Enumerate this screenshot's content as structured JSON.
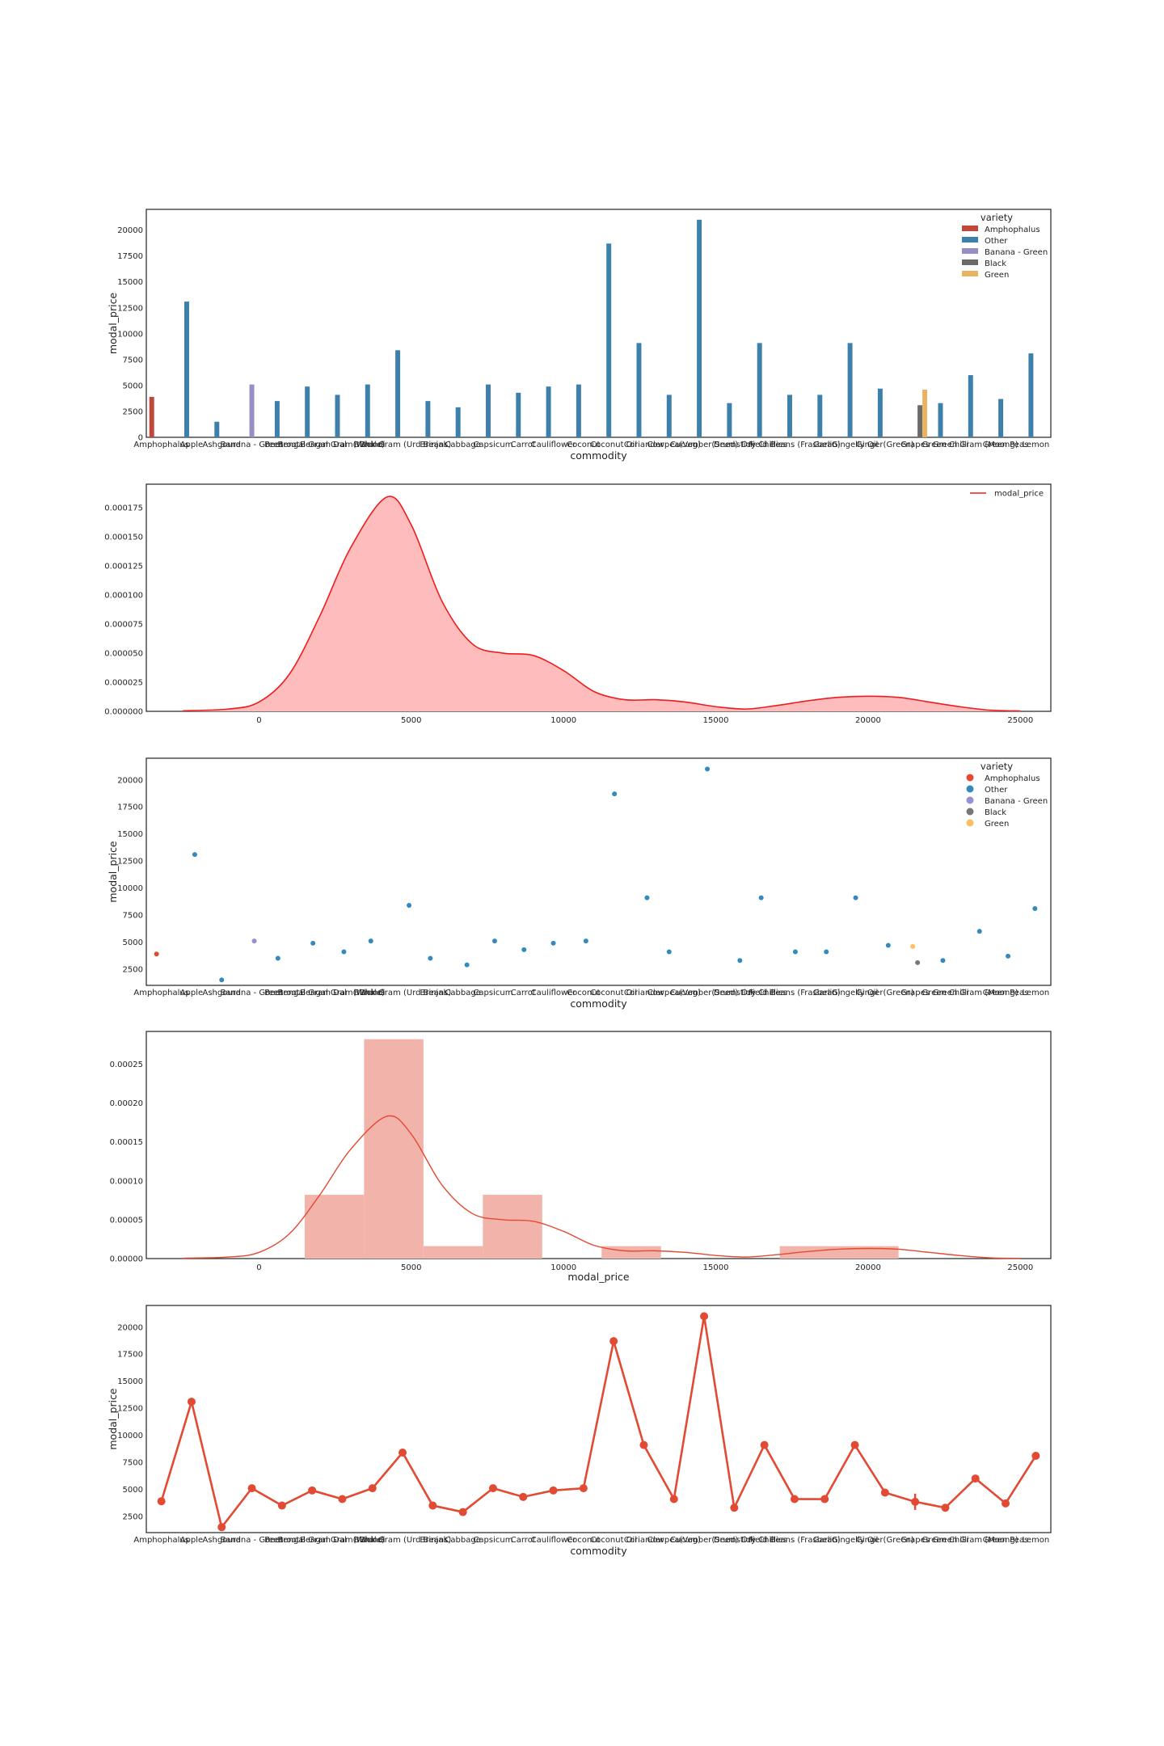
{
  "chart_data": [
    {
      "type": "bar",
      "xlabel": "commodity",
      "ylabel": "modal_price",
      "ylim": [
        0,
        22000
      ],
      "yticks": [
        "0",
        "2500",
        "5000",
        "7500",
        "10000",
        "12500",
        "15000",
        "17500",
        "20000"
      ],
      "legend": {
        "title": "variety",
        "position": "top-right",
        "entries": [
          "Amphophalus",
          "Other",
          "Banana - Green",
          "Black",
          "Green"
        ]
      },
      "series_colors": {
        "Amphophalus": "#c0473a",
        "Other": "#3d80aa",
        "Banana - Green": "#998ec3",
        "Black": "#6a6a6a",
        "Green": "#e9b361"
      },
      "categories": [
        "Amphophalus",
        "Apple",
        "Ashgourd",
        "Banana - Green",
        "Beetroot",
        "Bengal Gram Dal",
        "Bengal Gram(Whole)",
        "Bhindi",
        "Black Gram (Urd Beans)",
        "Brinjal",
        "Cabbage",
        "Capsicum",
        "Carrot",
        "Cauliflower",
        "Coconut",
        "Coconut Oil",
        "Coriander",
        "Cowpea(Veg)",
        "Cucumber(Seed)",
        "Drumstick",
        "Dry Chillies",
        "Field Beans (Frasbean)",
        "Garlic",
        "Gingelly Oil",
        "Ginger(Green)",
        "Grapes",
        "Green Chilli",
        "Green Gram (Moong)",
        "Green Peas",
        "Lemon"
      ],
      "tick_labels": [
        "Amphophalus",
        "Apple",
        "Ashgourd",
        "Banana - Green",
        "Beetroot",
        "Bengal Gram Dal",
        "Bengal Gram(Whole)",
        "Bhindi",
        "Black Gram (Urd Beans)",
        "Brinjal",
        "Cabbage",
        "Capsicum",
        "Carrot",
        "Cauliflower",
        "Coconut",
        "Coconut Oil",
        "Coriander",
        "Cowpea(Veg)",
        "Cucumber(Seed)",
        "Drumstick",
        "Dry Chillies",
        "Field Beans (Frasbean)",
        "Garlic",
        "Gingelly Oil",
        "Ginger(Green)",
        "Grapes",
        "Green Chilli",
        "Green Gram (Moong)",
        "Green Peas",
        "Lemon"
      ],
      "bars": [
        {
          "category": "Amphophalus",
          "variety": "Amphophalus",
          "value": 3900
        },
        {
          "category": "Apple",
          "variety": "Other",
          "value": 13100
        },
        {
          "category": "Ashgourd",
          "variety": "Other",
          "value": 1500
        },
        {
          "category": "Banana - Green",
          "variety": "Banana - Green",
          "value": 5100
        },
        {
          "category": "Beetroot",
          "variety": "Other",
          "value": 3500
        },
        {
          "category": "Bengal Gram Dal",
          "variety": "Other",
          "value": 4900
        },
        {
          "category": "Bengal Gram(Whole)",
          "variety": "Other",
          "value": 4100
        },
        {
          "category": "Bhindi",
          "variety": "Other",
          "value": 5100
        },
        {
          "category": "Black Gram (Urd Beans)",
          "variety": "Other",
          "value": 8400
        },
        {
          "category": "Brinjal",
          "variety": "Other",
          "value": 3500
        },
        {
          "category": "Cabbage",
          "variety": "Other",
          "value": 2900
        },
        {
          "category": "Capsicum",
          "variety": "Other",
          "value": 5100
        },
        {
          "category": "Carrot",
          "variety": "Other",
          "value": 4300
        },
        {
          "category": "Cauliflower",
          "variety": "Other",
          "value": 4900
        },
        {
          "category": "Coconut",
          "variety": "Other",
          "value": 5100
        },
        {
          "category": "Coconut Oil",
          "variety": "Other",
          "value": 18700
        },
        {
          "category": "Coriander",
          "variety": "Other",
          "value": 9100
        },
        {
          "category": "Cowpea(Veg)",
          "variety": "Other",
          "value": 4100
        },
        {
          "category": "Cucumber(Seed)",
          "variety": "Other",
          "value": 21000
        },
        {
          "category": "Drumstick",
          "variety": "Other",
          "value": 3300
        },
        {
          "category": "Dry Chillies",
          "variety": "Other",
          "value": 9100
        },
        {
          "category": "Field Beans (Frasbean)",
          "variety": "Other",
          "value": 4100
        },
        {
          "category": "Garlic",
          "variety": "Other",
          "value": 4100
        },
        {
          "category": "Gingelly Oil",
          "variety": "Other",
          "value": 9100
        },
        {
          "category": "Ginger(Green)",
          "variety": "Other",
          "value": 4700
        },
        {
          "category": "Grapes",
          "variety": "Black",
          "value": 3100
        },
        {
          "category": "Grapes",
          "variety": "Green",
          "value": 4600
        },
        {
          "category": "Green Chilli",
          "variety": "Other",
          "value": 3300
        },
        {
          "category": "Green Gram (Moong)",
          "variety": "Other",
          "value": 6000
        },
        {
          "category": "Green Peas",
          "variety": "Other",
          "value": 3700
        },
        {
          "category": "Lemon",
          "variety": "Other",
          "value": 8100
        }
      ]
    },
    {
      "type": "area",
      "xlim": [
        -3700,
        26000
      ],
      "ylim": [
        0,
        0.000195
      ],
      "xticks": [
        "0",
        "5000",
        "10000",
        "15000",
        "20000",
        "25000"
      ],
      "yticks": [
        "0.000000",
        "0.000025",
        "0.000050",
        "0.000075",
        "0.000100",
        "0.000125",
        "0.000150",
        "0.000175"
      ],
      "legend": {
        "position": "top-right",
        "entries": [
          "modal_price"
        ]
      },
      "color": "#ee1c1c",
      "fill": "#ffbcbc",
      "x": [
        -2500,
        -1000,
        0,
        1000,
        2000,
        3000,
        4200,
        5000,
        6000,
        7000,
        8000,
        9000,
        10000,
        11000,
        12000,
        13000,
        14000,
        15000,
        16000,
        17000,
        18000,
        19000,
        20000,
        21000,
        22000,
        23000,
        24000,
        25000
      ],
      "y": [
        5e-07,
        2e-06,
        8e-06,
        3.2e-05,
        8.2e-05,
        0.00014,
        0.000184,
        0.00016,
        9.5e-05,
        5.8e-05,
        5e-05,
        4.8e-05,
        3.5e-05,
        1.7e-05,
        1e-05,
        1e-05,
        8e-06,
        4e-06,
        2e-06,
        5e-06,
        9e-06,
        1.2e-05,
        1.3e-05,
        1.2e-05,
        8e-06,
        4e-06,
        1e-06,
        3e-07
      ]
    },
    {
      "type": "scatter",
      "xlabel": "commodity",
      "ylabel": "modal_price",
      "ylim": [
        1000,
        22000
      ],
      "yticks": [
        "2500",
        "5000",
        "7500",
        "10000",
        "12500",
        "15000",
        "17500",
        "20000"
      ],
      "legend": {
        "title": "variety",
        "position": "top-right",
        "entries": [
          "Amphophalus",
          "Other",
          "Banana - Green",
          "Black",
          "Green"
        ]
      },
      "series_colors": {
        "Amphophalus": "#e24a33",
        "Other": "#348abd",
        "Banana - Green": "#988ed5",
        "Black": "#777777",
        "Green": "#fbc15e"
      },
      "points": [
        {
          "category": "Amphophalus",
          "variety": "Amphophalus",
          "value": 3900
        },
        {
          "category": "Apple",
          "variety": "Other",
          "value": 13100
        },
        {
          "category": "Ashgourd",
          "variety": "Other",
          "value": 1500
        },
        {
          "category": "Banana - Green",
          "variety": "Banana - Green",
          "value": 5100
        },
        {
          "category": "Beetroot",
          "variety": "Other",
          "value": 3500
        },
        {
          "category": "Bengal Gram Dal",
          "variety": "Other",
          "value": 4900
        },
        {
          "category": "Bengal Gram(Whole)",
          "variety": "Other",
          "value": 4100
        },
        {
          "category": "Bhindi",
          "variety": "Other",
          "value": 5100
        },
        {
          "category": "Black Gram (Urd Beans)",
          "variety": "Other",
          "value": 8400
        },
        {
          "category": "Brinjal",
          "variety": "Other",
          "value": 3500
        },
        {
          "category": "Cabbage",
          "variety": "Other",
          "value": 2900
        },
        {
          "category": "Capsicum",
          "variety": "Other",
          "value": 5100
        },
        {
          "category": "Carrot",
          "variety": "Other",
          "value": 4300
        },
        {
          "category": "Cauliflower",
          "variety": "Other",
          "value": 4900
        },
        {
          "category": "Coconut",
          "variety": "Other",
          "value": 5100
        },
        {
          "category": "Coconut Oil",
          "variety": "Other",
          "value": 18700
        },
        {
          "category": "Coriander",
          "variety": "Other",
          "value": 9100
        },
        {
          "category": "Cowpea(Veg)",
          "variety": "Other",
          "value": 4100
        },
        {
          "category": "Cucumber(Seed)",
          "variety": "Other",
          "value": 21000
        },
        {
          "category": "Drumstick",
          "variety": "Other",
          "value": 3300
        },
        {
          "category": "Dry Chillies",
          "variety": "Other",
          "value": 9100
        },
        {
          "category": "Field Beans (Frasbean)",
          "variety": "Other",
          "value": 4100
        },
        {
          "category": "Garlic",
          "variety": "Other",
          "value": 4100
        },
        {
          "category": "Gingelly Oil",
          "variety": "Other",
          "value": 9100
        },
        {
          "category": "Ginger(Green)",
          "variety": "Other",
          "value": 4700
        },
        {
          "category": "Grapes",
          "variety": "Green",
          "value": 4600
        },
        {
          "category": "Grapes",
          "variety": "Black",
          "value": 3100
        },
        {
          "category": "Green Chilli",
          "variety": "Other",
          "value": 3300
        },
        {
          "category": "Green Gram (Moong)",
          "variety": "Other",
          "value": 6000
        },
        {
          "category": "Green Peas",
          "variety": "Other",
          "value": 3700
        },
        {
          "category": "Lemon",
          "variety": "Other",
          "value": 8100
        }
      ]
    },
    {
      "type": "bar",
      "subtype": "histogram+kde",
      "xlabel": "modal_price",
      "xlim": [
        -3700,
        26000
      ],
      "ylim": [
        0,
        0.000292
      ],
      "xticks": [
        "0",
        "5000",
        "10000",
        "15000",
        "20000",
        "25000"
      ],
      "yticks": [
        "0.00000",
        "0.00005",
        "0.00010",
        "0.00015",
        "0.00020",
        "0.00025"
      ],
      "hist_color": "#f2b4aa",
      "line_color": "#e24a33",
      "bins": [
        {
          "start": 1500,
          "end": 3450,
          "density": 8.2e-05
        },
        {
          "start": 3450,
          "end": 5400,
          "density": 0.000282
        },
        {
          "start": 5400,
          "end": 7350,
          "density": 1.6e-05
        },
        {
          "start": 7350,
          "end": 9300,
          "density": 8.2e-05
        },
        {
          "start": 9300,
          "end": 11250,
          "density": 0.0
        },
        {
          "start": 11250,
          "end": 13200,
          "density": 1.6e-05
        },
        {
          "start": 13200,
          "end": 15150,
          "density": 0.0
        },
        {
          "start": 15150,
          "end": 17100,
          "density": 0.0
        },
        {
          "start": 17100,
          "end": 21000,
          "density": 1.6e-05
        }
      ],
      "kde_x": [
        -2500,
        -1000,
        0,
        1000,
        2000,
        3000,
        4200,
        5000,
        6000,
        7000,
        8000,
        9000,
        10000,
        11000,
        12000,
        13000,
        14000,
        15000,
        16000,
        17000,
        18000,
        19000,
        20000,
        21000,
        22000,
        23000,
        24000,
        25000
      ],
      "kde_y": [
        5e-07,
        2e-06,
        8e-06,
        3.2e-05,
        8.2e-05,
        0.00014,
        0.000183,
        0.00016,
        9.5e-05,
        5.8e-05,
        5e-05,
        4.8e-05,
        3.5e-05,
        1.7e-05,
        1e-05,
        1e-05,
        8e-06,
        4e-06,
        2e-06,
        5e-06,
        9e-06,
        1.2e-05,
        1.3e-05,
        1.2e-05,
        8e-06,
        4e-06,
        1e-06,
        3e-07
      ]
    },
    {
      "type": "line",
      "subtype": "pointplot",
      "xlabel": "commodity",
      "ylabel": "modal_price",
      "ylim": [
        1000,
        22000
      ],
      "yticks": [
        "2500",
        "5000",
        "7500",
        "10000",
        "12500",
        "15000",
        "17500",
        "20000"
      ],
      "color": "#e24a33",
      "values": [
        3900,
        13100,
        1500,
        5100,
        3500,
        4900,
        4100,
        5100,
        8400,
        3500,
        2900,
        5100,
        4300,
        4900,
        5100,
        18700,
        9100,
        4100,
        21000,
        3300,
        9100,
        4100,
        4100,
        9100,
        4700,
        3850,
        3300,
        6000,
        3700,
        8100
      ],
      "error_bars": [
        {
          "category": "Grapes",
          "low": 3100,
          "high": 4600
        }
      ]
    }
  ]
}
